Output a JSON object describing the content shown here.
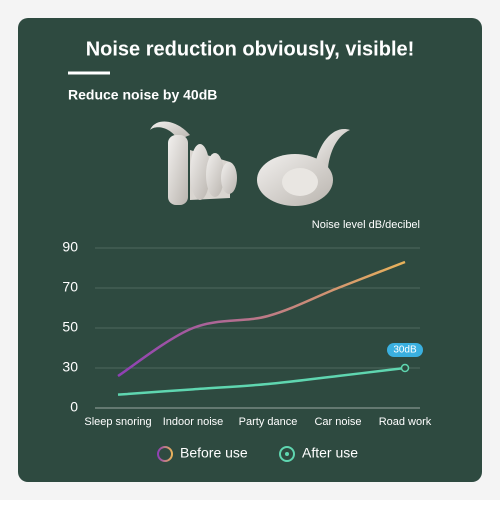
{
  "chart_data": {
    "type": "line",
    "title": "Noise reduction obviously, visible!",
    "subtitle": "Reduce noise by 40dB",
    "y_axis_label": "Noise level dB/decibel",
    "categories": [
      "Sleep snoring",
      "Indoor noise",
      "Party dance",
      "Car noise",
      "Road work"
    ],
    "series": [
      {
        "name": "Before use",
        "colors": [
          "#8e3fb5",
          "#e9b35a"
        ],
        "values": [
          24,
          50,
          56,
          70,
          83
        ]
      },
      {
        "name": "After use",
        "color": "#5fd6b0",
        "values": [
          10,
          14,
          18,
          24,
          30
        ],
        "value_labels": [
          null,
          null,
          null,
          null,
          "30dB"
        ]
      }
    ],
    "ylim": [
      0,
      90
    ],
    "yticks": [
      0,
      30,
      50,
      70,
      90
    ],
    "grid": true
  }
}
